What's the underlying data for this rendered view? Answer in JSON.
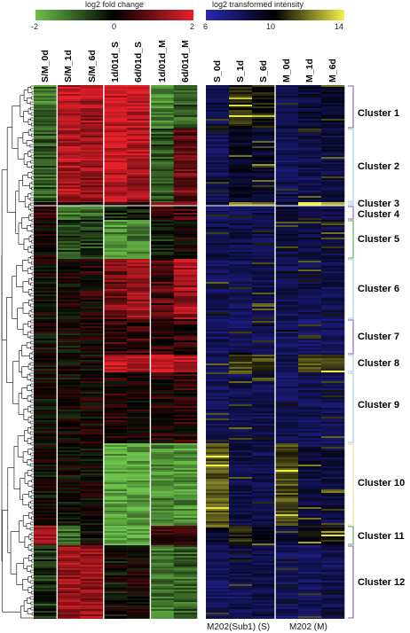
{
  "chart_data": [
    {
      "type": "heatmap",
      "title": "log2 fold change",
      "colorbar": {
        "min": -2,
        "max": 2,
        "ticks": [
          "-2",
          "0",
          "2"
        ],
        "colors": [
          "#6cc24a",
          "#000000",
          "#e8202a"
        ]
      },
      "columns": [
        "S/M_0d",
        "S/M_1d",
        "S/M_6d",
        "1d/01d_S",
        "6d/01d_S",
        "1d/01d_M",
        "6d/01d_M"
      ],
      "cluster_rows": [
        {
          "cluster": "Cluster 1",
          "values": [
            -1.2,
            1.6,
            1.4,
            1.8,
            1.6,
            -1.3,
            -0.9
          ]
        },
        {
          "cluster": "Cluster 2",
          "values": [
            -0.9,
            1.5,
            1.3,
            1.7,
            1.4,
            -0.8,
            0.9
          ]
        },
        {
          "cluster": "Cluster 3",
          "values": [
            0.0,
            0.0,
            0.0,
            0.5,
            0.4,
            1.0,
            1.1
          ]
        },
        {
          "cluster": "Cluster 4",
          "values": [
            0.6,
            -1.2,
            -1.0,
            -0.5,
            -0.4,
            0.4,
            0.5
          ]
        },
        {
          "cluster": "Cluster 5",
          "values": [
            0.0,
            -0.7,
            -0.6,
            -1.4,
            -1.3,
            -0.3,
            0.0
          ]
        },
        {
          "cluster": "Cluster 6",
          "values": [
            0.0,
            0.1,
            0.2,
            1.0,
            1.4,
            0.7,
            1.4
          ]
        },
        {
          "cluster": "Cluster 7",
          "values": [
            0.0,
            0.0,
            0.1,
            0.4,
            0.5,
            0.3,
            0.4
          ]
        },
        {
          "cluster": "Cluster 8",
          "values": [
            0.0,
            0.0,
            0.0,
            1.7,
            1.6,
            1.6,
            1.5
          ]
        },
        {
          "cluster": "Cluster 9",
          "values": [
            0.0,
            0.0,
            0.1,
            0.2,
            0.2,
            0.2,
            0.3
          ]
        },
        {
          "cluster": "Cluster 10",
          "values": [
            0.0,
            0.0,
            0.0,
            -1.7,
            -1.7,
            -1.4,
            -1.5
          ]
        },
        {
          "cluster": "Cluster 11",
          "values": [
            1.3,
            -1.0,
            0.0,
            -1.9,
            -1.7,
            0.6,
            0.6
          ]
        },
        {
          "cluster": "Cluster 12",
          "values": [
            -0.5,
            1.3,
            1.3,
            -0.1,
            0.1,
            -1.2,
            -1.0
          ]
        }
      ]
    },
    {
      "type": "heatmap",
      "title": "log2 transformed intensity",
      "colorbar": {
        "min": 6,
        "max": 14,
        "ticks": [
          "6",
          "10",
          "14"
        ],
        "colors": [
          "#2828b4",
          "#000000",
          "#f5f24a"
        ]
      },
      "columns": [
        "S_0d",
        "S_1d",
        "S_6d",
        "M_0d",
        "M_1d",
        "M_6d"
      ],
      "groups": [
        "M202(Sub1) (S)",
        "M202 (M)"
      ],
      "cluster_rows": [
        {
          "cluster": "Cluster 1",
          "values": [
            8.2,
            10.5,
            10.3,
            8.2,
            8.8,
            9.1
          ]
        },
        {
          "cluster": "Cluster 2",
          "values": [
            8.0,
            9.2,
            9.0,
            8.0,
            8.3,
            8.6
          ]
        },
        {
          "cluster": "Cluster 3",
          "values": [
            9.0,
            12.0,
            12.3,
            9.0,
            11.8,
            12.3
          ]
        },
        {
          "cluster": "Cluster 4",
          "values": [
            8.0,
            8.2,
            8.2,
            8.6,
            8.2,
            8.3
          ]
        },
        {
          "cluster": "Cluster 5",
          "values": [
            8.4,
            8.5,
            8.3,
            8.5,
            8.5,
            8.5
          ]
        },
        {
          "cluster": "Cluster 6",
          "values": [
            8.1,
            8.0,
            8.3,
            8.2,
            8.3,
            8.2
          ]
        },
        {
          "cluster": "Cluster 7",
          "values": [
            7.9,
            7.9,
            7.9,
            7.9,
            7.9,
            7.9
          ]
        },
        {
          "cluster": "Cluster 8",
          "values": [
            8.3,
            11.3,
            11.1,
            8.2,
            11.2,
            11.3
          ]
        },
        {
          "cluster": "Cluster 9",
          "values": [
            8.1,
            8.3,
            8.2,
            8.1,
            8.2,
            8.1
          ]
        },
        {
          "cluster": "Cluster 10",
          "values": [
            11.4,
            8.4,
            8.3,
            11.2,
            8.6,
            8.5
          ]
        },
        {
          "cluster": "Cluster 11",
          "values": [
            9.0,
            10.4,
            9.4,
            8.8,
            10.0,
            10.2
          ]
        },
        {
          "cluster": "Cluster 12",
          "values": [
            8.0,
            8.3,
            8.4,
            8.0,
            7.9,
            8.1
          ]
        }
      ]
    }
  ],
  "cluster_colors": [
    "#7b5cab",
    "#9ccde8",
    "#9ccde8",
    "#7b5cab",
    "#4fa84f",
    "#9ccde8",
    "#7b5cab",
    "#9ccde8",
    "#9ccde8",
    "#f2da8c",
    "#4fa84f",
    "#7b5cab"
  ]
}
